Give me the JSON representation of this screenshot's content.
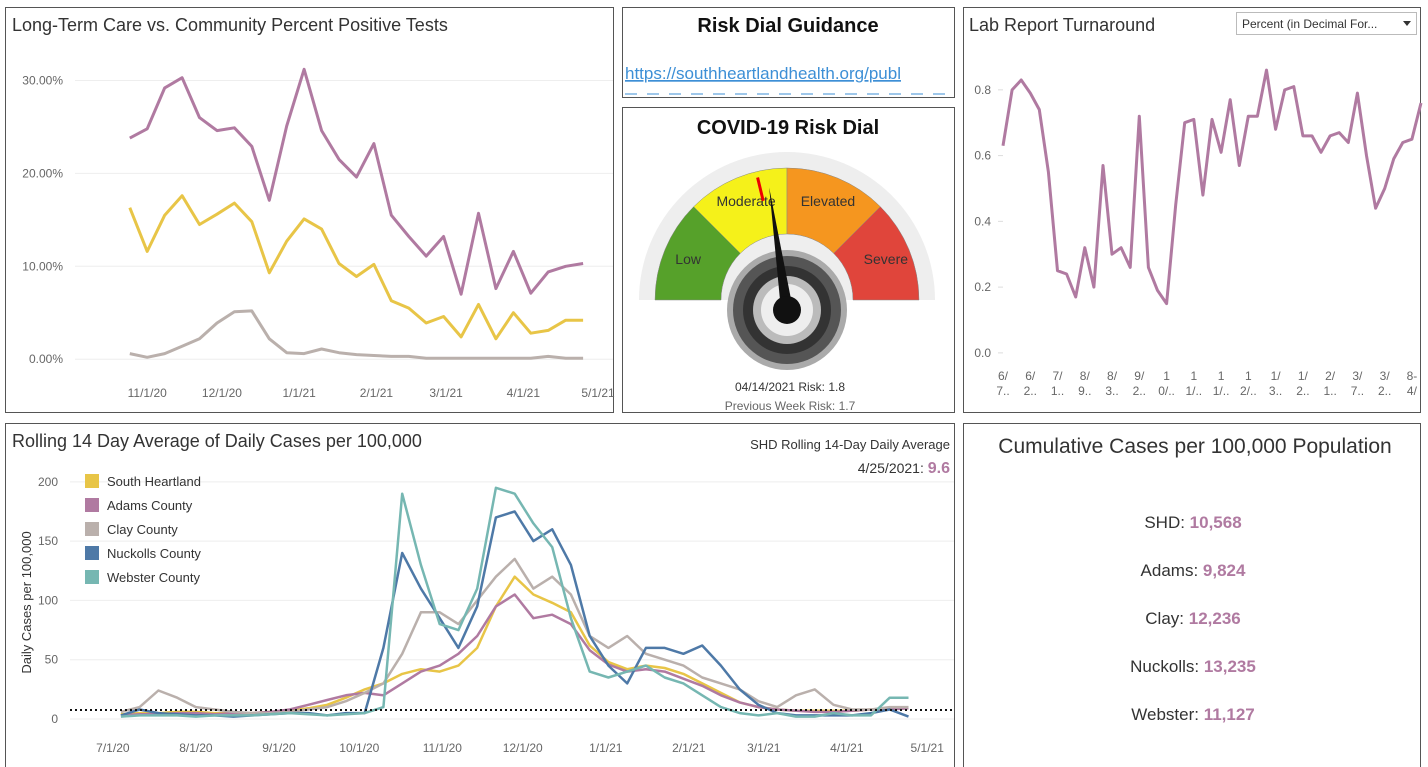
{
  "chart_data": [
    {
      "type": "line",
      "title": "Long-Term Care vs. Community Percent Positive Tests",
      "x": [
        "10/25/20",
        "11/1/20",
        "11/8/20",
        "11/15/20",
        "11/22/20",
        "11/29/20",
        "12/6/20",
        "12/13/20",
        "12/20/20",
        "12/27/20",
        "1/3/21",
        "1/10/21",
        "1/17/21",
        "1/24/21",
        "1/31/21",
        "2/7/21",
        "2/14/21",
        "2/21/21",
        "2/28/21",
        "3/7/21",
        "3/14/21",
        "3/21/21",
        "3/28/21",
        "4/4/21",
        "4/11/21",
        "4/18/21",
        "4/25/21"
      ],
      "series": [
        {
          "color": "#b07aa1",
          "values": [
            23.8,
            24.8,
            29.2,
            30.3,
            26.0,
            24.6,
            24.9,
            22.9,
            17.1,
            25.1,
            31.2,
            24.6,
            21.5,
            19.6,
            23.2,
            15.5,
            13.2,
            11.1,
            13.2,
            7.0,
            15.7,
            7.6,
            11.6,
            7.1,
            9.4,
            10.0,
            10.3
          ]
        },
        {
          "color": "#e8c547",
          "values": [
            16.3,
            11.6,
            15.5,
            17.6,
            14.5,
            15.6,
            16.8,
            14.8,
            9.3,
            12.7,
            15.1,
            14.0,
            10.3,
            8.9,
            10.2,
            6.3,
            5.5,
            3.9,
            4.6,
            2.4,
            5.9,
            2.2,
            5.0,
            2.8,
            3.1,
            4.2,
            4.2
          ]
        },
        {
          "color": "#bab0ac",
          "values": [
            0.6,
            0.2,
            0.6,
            1.4,
            2.2,
            3.9,
            5.1,
            5.2,
            2.2,
            0.7,
            0.6,
            1.1,
            0.7,
            0.5,
            0.4,
            0.3,
            0.3,
            0.1,
            0.1,
            0.1,
            0.1,
            0.1,
            0.1,
            0.1,
            0.3,
            0.1,
            0.1
          ]
        }
      ],
      "xlim": [
        "10/3/20",
        "5/7/21"
      ],
      "xticks": [
        "11/1/20",
        "12/1/20",
        "1/1/21",
        "2/1/21",
        "3/1/21",
        "4/1/21",
        "5/1/21"
      ],
      "ylim": [
        -1.7,
        32.2
      ],
      "yticks": [
        {
          "value": 0,
          "label": "0.00%"
        },
        {
          "value": 10,
          "label": "10.00%"
        },
        {
          "value": 20,
          "label": "20.00%"
        },
        {
          "value": 30,
          "label": "30.00%"
        }
      ],
      "grid": true
    },
    {
      "type": "line",
      "title": "Lab Report Turnaround",
      "dropdown": "Percent (in Decimal For...",
      "categories": [
        "6/ 7..",
        null,
        null,
        "6/ 2..",
        null,
        null,
        "7/ 1..",
        null,
        null,
        "8/ 9..",
        null,
        null,
        "8/ 3..",
        null,
        null,
        "9/ 2..",
        null,
        null,
        "1 0/..",
        null,
        null,
        "1 1/..",
        null,
        null,
        "1 1/..",
        null,
        null,
        "1 2/..",
        null,
        null,
        "1/ 3..",
        null,
        null,
        "1/ 2..",
        null,
        null,
        "2/ 1..",
        null,
        null,
        "3/ 7..",
        null,
        null,
        "3/ 2..",
        null,
        null,
        "8- 4/",
        null
      ],
      "series": [
        {
          "color": "#b07aa1",
          "values": [
            0.63,
            0.8,
            0.83,
            0.79,
            0.74,
            0.55,
            0.25,
            0.24,
            0.17,
            0.32,
            0.2,
            0.57,
            0.3,
            0.32,
            0.26,
            0.72,
            0.26,
            0.19,
            0.15,
            0.45,
            0.7,
            0.71,
            0.48,
            0.71,
            0.61,
            0.77,
            0.57,
            0.72,
            0.72,
            0.86,
            0.68,
            0.8,
            0.81,
            0.66,
            0.66,
            0.61,
            0.66,
            0.67,
            0.64,
            0.79,
            0.6,
            0.44,
            0.5,
            0.59,
            0.64,
            0.65,
            0.76
          ]
        }
      ],
      "ylim": [
        -0.046,
        0.906
      ],
      "yticks": [
        {
          "value": 0,
          "label": "0.0"
        },
        0.2,
        0.4,
        0.6,
        0.8
      ],
      "grid": false
    },
    {
      "type": "line",
      "title": "Rolling 14 Day Average of Daily Cases per 100,000",
      "y_label": "Daily Cases per 100,000",
      "annotation": "SHD Rolling 14-Day Daily Average",
      "annotation_date": "4/25/2021: ",
      "annotation_value": 9.6,
      "legend": "top-left",
      "x": [
        "7/4/20",
        "7/11/20",
        "7/18/20",
        "7/25/20",
        "8/1/20",
        "8/8/20",
        "8/15/20",
        "8/22/20",
        "8/29/20",
        "9/5/20",
        "9/12/20",
        "9/19/20",
        "9/26/20",
        "10/3/20",
        "10/10/20",
        "10/17/20",
        "10/24/20",
        "10/31/20",
        "11/7/20",
        "11/14/20",
        "11/21/20",
        "11/28/20",
        "12/5/20",
        "12/12/20",
        "12/19/20",
        "12/26/20",
        "1/2/21",
        "1/9/21",
        "1/16/21",
        "1/23/21",
        "1/30/21",
        "2/6/21",
        "2/13/21",
        "2/20/21",
        "2/27/21",
        "3/6/21",
        "3/13/21",
        "3/20/21",
        "3/27/21",
        "4/3/21",
        "4/10/21",
        "4/17/21",
        "4/24/21"
      ],
      "series": [
        {
          "name": "South Heartland",
          "color": "#e8c547",
          "values": [
            4,
            5,
            5,
            6,
            6,
            5,
            5,
            5,
            6,
            7,
            9,
            12,
            18,
            25,
            30,
            38,
            42,
            40,
            45,
            60,
            95,
            120,
            105,
            98,
            90,
            62,
            48,
            42,
            45,
            43,
            38,
            30,
            22,
            14,
            10,
            8,
            7,
            7,
            7,
            7,
            8,
            9,
            9.6
          ]
        },
        {
          "name": "Adams County",
          "color": "#b07aa1",
          "values": [
            3,
            4,
            4,
            5,
            5,
            4,
            5,
            5,
            6,
            8,
            12,
            16,
            20,
            22,
            20,
            30,
            40,
            45,
            55,
            70,
            95,
            105,
            85,
            88,
            80,
            58,
            46,
            40,
            42,
            40,
            34,
            28,
            20,
            14,
            10,
            8,
            7,
            6,
            6,
            7,
            8,
            8,
            9
          ]
        },
        {
          "name": "Clay County",
          "color": "#bab0ac",
          "values": [
            6,
            10,
            24,
            18,
            10,
            8,
            6,
            5,
            5,
            6,
            8,
            10,
            15,
            22,
            30,
            55,
            90,
            90,
            80,
            100,
            120,
            135,
            110,
            120,
            105,
            70,
            60,
            70,
            55,
            50,
            45,
            35,
            30,
            25,
            15,
            10,
            20,
            25,
            12,
            8,
            8,
            10,
            10
          ]
        },
        {
          "name": "Nuckolls County",
          "color": "#4e79a7",
          "values": [
            3,
            8,
            5,
            4,
            3,
            3,
            2,
            3,
            4,
            5,
            5,
            3,
            5,
            5,
            60,
            140,
            110,
            85,
            60,
            95,
            170,
            175,
            150,
            160,
            130,
            70,
            45,
            30,
            60,
            60,
            55,
            62,
            45,
            25,
            12,
            5,
            3,
            3,
            3,
            3,
            5,
            8,
            2
          ]
        },
        {
          "name": "Webster County",
          "color": "#76b7b2",
          "values": [
            2,
            3,
            3,
            3,
            2,
            3,
            3,
            3,
            4,
            5,
            4,
            3,
            4,
            5,
            10,
            190,
            130,
            80,
            75,
            110,
            195,
            190,
            165,
            145,
            85,
            40,
            35,
            40,
            45,
            35,
            30,
            20,
            10,
            5,
            3,
            5,
            2,
            2,
            5,
            3,
            3,
            18,
            18
          ]
        }
      ],
      "reference_line": 7.6,
      "xlim": [
        "6/15/20",
        "5/11/21"
      ],
      "xticks": [
        "7/1/20",
        "8/1/20",
        "9/1/20",
        "10/1/20",
        "11/1/20",
        "12/1/20",
        "1/1/21",
        "2/1/21",
        "3/1/21",
        "4/1/21",
        "5/1/21"
      ],
      "ylim": [
        -13.5,
        210
      ],
      "yticks": [
        0,
        50,
        100,
        150,
        200
      ],
      "grid": true
    }
  ],
  "guidance": {
    "title": "Risk Dial Guidance",
    "link": "https://southheartlandhealth.org/publ"
  },
  "risk_dial": {
    "title": "COVID-19 Risk Dial",
    "levels": [
      "Low",
      "Moderate",
      "Elevated",
      "Severe"
    ],
    "current_label": "04/14/2021 Risk: ",
    "risk": 1.8,
    "previous_label": "Previous Week Risk: ",
    "previous_risk": 1.7
  },
  "cumulative": {
    "title": "Cumulative Cases per 100,000 Population",
    "items": [
      {
        "label": "SHD: ",
        "value": "10,568"
      },
      {
        "label": "Adams: ",
        "value": "9,824"
      },
      {
        "label": "Clay: ",
        "value": "12,236"
      },
      {
        "label": "Nuckolls: ",
        "value": "13,235"
      },
      {
        "label": "Webster: ",
        "value": "11,127"
      }
    ]
  }
}
